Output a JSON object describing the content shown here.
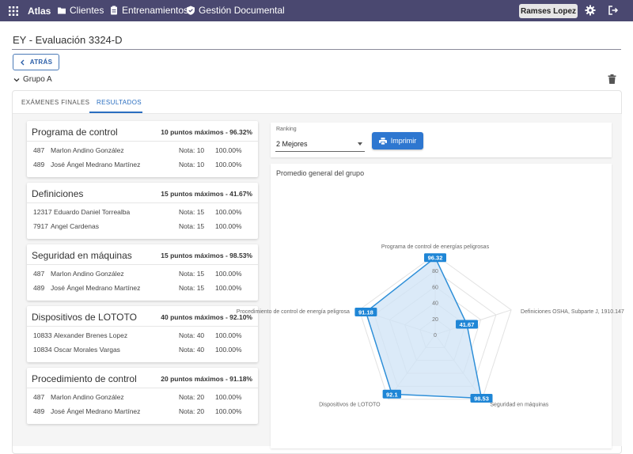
{
  "navbar": {
    "brand": "Atlas",
    "items": [
      {
        "label": "Clientes",
        "icon": "folder-icon"
      },
      {
        "label": "Entrenamientos",
        "icon": "clipboard-icon"
      },
      {
        "label": "Gestión Documental",
        "icon": "shield-icon"
      }
    ],
    "user": "Ramses Lopez"
  },
  "page": {
    "title": "EY - Evaluación 3324-D",
    "back_label": "ATRÁS",
    "group_label": "Grupo A"
  },
  "tabs": [
    {
      "label": "EXÁMENES FINALES",
      "active": false
    },
    {
      "label": "RESULTADOS",
      "active": true
    }
  ],
  "nota_prefix": "Nota:",
  "cards": [
    {
      "title": "Programa de control",
      "points": "10 puntos máximos - 96.32%",
      "rows": [
        {
          "id": "487",
          "name": "Marlon Andino González",
          "nota": "10",
          "pct": "100.00%"
        },
        {
          "id": "489",
          "name": "José Ángel Medrano Martínez",
          "nota": "10",
          "pct": "100.00%"
        }
      ]
    },
    {
      "title": "Definiciones",
      "points": "15 puntos máximos - 41.67%",
      "rows": [
        {
          "id": "12317",
          "name": "Eduardo Daniel Torrealba",
          "nota": "15",
          "pct": "100.00%"
        },
        {
          "id": "7917",
          "name": "Angel Cardenas",
          "nota": "15",
          "pct": "100.00%"
        }
      ]
    },
    {
      "title": "Seguridad en máquinas",
      "points": "15 puntos máximos - 98.53%",
      "rows": [
        {
          "id": "487",
          "name": "Marlon Andino González",
          "nota": "15",
          "pct": "100.00%"
        },
        {
          "id": "489",
          "name": "José Ángel Medrano Martínez",
          "nota": "15",
          "pct": "100.00%"
        }
      ]
    },
    {
      "title": "Dispositivos de LOTOTO",
      "points": "40 puntos máximos - 92.10%",
      "rows": [
        {
          "id": "10833",
          "name": "Alexander Brenes Lopez",
          "nota": "40",
          "pct": "100.00%"
        },
        {
          "id": "10834",
          "name": "Oscar Morales Vargas",
          "nota": "40",
          "pct": "100.00%"
        }
      ]
    },
    {
      "title": "Procedimiento de control",
      "points": "20 puntos máximos - 91.18%",
      "rows": [
        {
          "id": "487",
          "name": "Marlon Andino González",
          "nota": "20",
          "pct": "100.00%"
        },
        {
          "id": "489",
          "name": "José Ángel Medrano Martínez",
          "nota": "20",
          "pct": "100.00%"
        }
      ]
    }
  ],
  "ranking": {
    "label": "Ranking",
    "selected": "2 Mejores",
    "print_label": "Imprimir"
  },
  "chart_data": {
    "type": "radar",
    "title": "Promedio general del grupo",
    "categories": [
      "Programa de control de energías peligrosas",
      "Definiciones OSHA, Subparte J, 1910.147",
      "Seguridad en máquinas",
      "Dispositivos de LOTOTO",
      "Procedimiento de control de energía peligrosa"
    ],
    "values": [
      96.32,
      41.67,
      98.53,
      92.1,
      91.18
    ],
    "value_labels": [
      "96.32",
      "41.67",
      "98.53",
      "92.1",
      "91.18"
    ],
    "rlim": [
      0,
      100
    ],
    "ticks": [
      "0",
      "20",
      "40",
      "60",
      "80"
    ],
    "colors": {
      "fill": "#cfe3f5",
      "stroke": "#2e8fd8",
      "label_bg": "#1f86d6"
    }
  }
}
